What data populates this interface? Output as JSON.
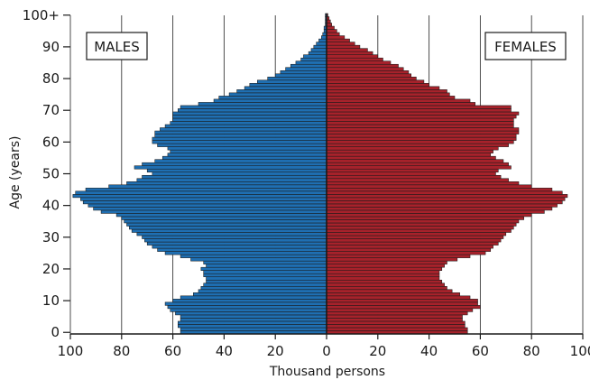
{
  "chart_data": {
    "type": "bar",
    "title": "",
    "xlabel": "Thousand persons",
    "ylabel": "Age (years)",
    "x_tick_labels": [
      "100",
      "80",
      "60",
      "40",
      "20",
      "0",
      "20",
      "40",
      "60",
      "80",
      "100"
    ],
    "y_tick_labels": [
      "0",
      "10",
      "20",
      "30",
      "40",
      "50",
      "60",
      "70",
      "80",
      "90",
      "100+"
    ],
    "xlim": [
      0,
      100
    ],
    "ylim": [
      0,
      100
    ],
    "grid": "vertical",
    "orientation": "horizontal",
    "series": [
      {
        "name": "MALES",
        "side": "left",
        "color": "#1f6fb2",
        "ages": [
          0,
          1,
          2,
          3,
          4,
          5,
          6,
          7,
          8,
          9,
          10,
          11,
          12,
          13,
          14,
          15,
          16,
          17,
          18,
          19,
          20,
          21,
          22,
          23,
          24,
          25,
          26,
          27,
          28,
          29,
          30,
          31,
          32,
          33,
          34,
          35,
          36,
          37,
          38,
          39,
          40,
          41,
          42,
          43,
          44,
          45,
          46,
          47,
          48,
          49,
          50,
          51,
          52,
          53,
          54,
          55,
          56,
          57,
          58,
          59,
          60,
          61,
          62,
          63,
          64,
          65,
          66,
          67,
          68,
          69,
          70,
          71,
          72,
          73,
          74,
          75,
          76,
          77,
          78,
          79,
          80,
          81,
          82,
          83,
          84,
          85,
          86,
          87,
          88,
          89,
          90,
          91,
          92,
          93,
          94,
          95,
          96,
          97,
          98,
          99,
          100
        ],
        "values": [
          57,
          57,
          58,
          58,
          57,
          57,
          59,
          61,
          62,
          63,
          60,
          57,
          52,
          50,
          49,
          48,
          47,
          47,
          48,
          48,
          49,
          47,
          48,
          53,
          57,
          63,
          66,
          68,
          70,
          71,
          72,
          74,
          76,
          77,
          78,
          79,
          80,
          82,
          88,
          91,
          93,
          95,
          96,
          99,
          98,
          94,
          85,
          78,
          74,
          72,
          68,
          70,
          75,
          72,
          67,
          64,
          62,
          61,
          62,
          66,
          68,
          68,
          67,
          67,
          65,
          63,
          61,
          60,
          60,
          60,
          58,
          57,
          50,
          44,
          42,
          38,
          35,
          32,
          30,
          27,
          23,
          20,
          18,
          16,
          14,
          12,
          10,
          9,
          7,
          6,
          5,
          4,
          3,
          2,
          1.5,
          1,
          1,
          0.5,
          0.5,
          0.5,
          0.5
        ]
      },
      {
        "name": "FEMALES",
        "side": "right",
        "color": "#a7222b",
        "ages": [
          0,
          1,
          2,
          3,
          4,
          5,
          6,
          7,
          8,
          9,
          10,
          11,
          12,
          13,
          14,
          15,
          16,
          17,
          18,
          19,
          20,
          21,
          22,
          23,
          24,
          25,
          26,
          27,
          28,
          29,
          30,
          31,
          32,
          33,
          34,
          35,
          36,
          37,
          38,
          39,
          40,
          41,
          42,
          43,
          44,
          45,
          46,
          47,
          48,
          49,
          50,
          51,
          52,
          53,
          54,
          55,
          56,
          57,
          58,
          59,
          60,
          61,
          62,
          63,
          64,
          65,
          66,
          67,
          68,
          69,
          70,
          71,
          72,
          73,
          74,
          75,
          76,
          77,
          78,
          79,
          80,
          81,
          82,
          83,
          84,
          85,
          86,
          87,
          88,
          89,
          90,
          91,
          92,
          93,
          94,
          95,
          96,
          97,
          98,
          99,
          100
        ],
        "values": [
          55,
          55,
          54,
          54,
          53,
          53,
          55,
          57,
          60,
          59,
          59,
          56,
          52,
          49,
          47,
          46,
          45,
          44,
          44,
          44,
          45,
          46,
          47,
          51,
          56,
          62,
          64,
          65,
          67,
          68,
          69,
          70,
          72,
          73,
          74,
          75,
          77,
          80,
          85,
          88,
          90,
          92,
          93,
          94,
          92,
          88,
          80,
          75,
          71,
          68,
          66,
          67,
          72,
          71,
          69,
          66,
          64,
          65,
          67,
          71,
          73,
          74,
          74,
          75,
          75,
          73,
          73,
          73,
          74,
          75,
          72,
          72,
          58,
          56,
          50,
          48,
          47,
          44,
          40,
          38,
          35,
          33,
          32,
          30,
          28,
          25,
          22,
          20,
          18,
          16,
          13,
          11,
          9,
          7,
          5,
          4,
          3,
          2,
          1.5,
          1,
          0.5
        ]
      }
    ]
  }
}
